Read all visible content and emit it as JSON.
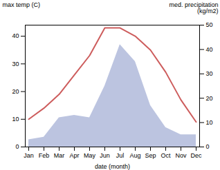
{
  "chart_data": {
    "type": "line",
    "xlabel": "date (month)",
    "ylabel": "max temp (C)",
    "y2label": "med. precipitation\n(kg/m2)",
    "categories": [
      "Jan",
      "Feb",
      "Mar",
      "Apr",
      "May",
      "Jun",
      "Jul",
      "Aug",
      "Sep",
      "Oct",
      "Nov",
      "Dec"
    ],
    "ylim": [
      0,
      44
    ],
    "yticks": [
      0,
      10,
      20,
      30,
      40
    ],
    "y2lim": [
      0,
      50
    ],
    "y2ticks": [
      0,
      10,
      20,
      30,
      40,
      50
    ],
    "series": [
      {
        "type": "area",
        "axis": "y2",
        "color": "#bcc4e0",
        "values": [
          3,
          4,
          12,
          13,
          12,
          25,
          42,
          35,
          17,
          8,
          5,
          5
        ]
      },
      {
        "type": "line",
        "color": "#cd5c5c",
        "values": [
          10,
          14,
          19,
          26,
          33,
          43,
          43,
          40,
          35,
          27,
          17,
          9
        ]
      }
    ]
  }
}
